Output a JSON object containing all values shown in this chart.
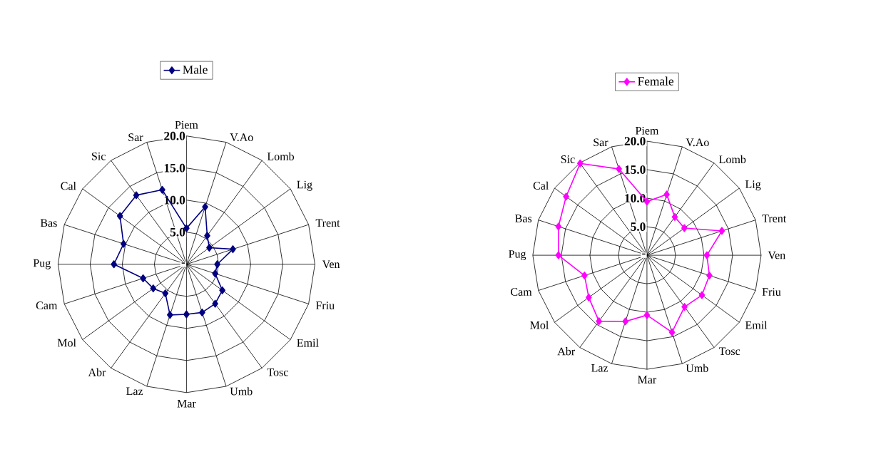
{
  "chart_data": [
    {
      "type": "radar",
      "categories": [
        "Piem",
        "V.Ao",
        "Lomb",
        "Lig",
        "Trent",
        "Ven",
        "Friu",
        "Emil",
        "Tosc",
        "Umb",
        "Mar",
        "Laz",
        "Abr",
        "Mol",
        "Cam",
        "Pug",
        "Bas",
        "Cal",
        "Sic",
        "Sar"
      ],
      "series": [
        {
          "name": "Male",
          "color": "#000080",
          "values": [
            5.6,
            9.4,
            5.5,
            4.4,
            7.6,
            4.8,
            4.7,
            6.9,
            7.6,
            7.9,
            7.8,
            8.3,
            5.6,
            6.4,
            7.1,
            11.3,
            10.3,
            12.8,
            13.3,
            12.2
          ]
        }
      ],
      "ylim": [
        0,
        20
      ],
      "yticks": [
        {
          "value": 0,
          "label": "-"
        },
        {
          "value": 5,
          "label": "5.0"
        },
        {
          "value": 10,
          "label": "10.0"
        },
        {
          "value": 15,
          "label": "15.0"
        },
        {
          "value": 20,
          "label": "20.0"
        }
      ],
      "grid": true,
      "legend": "top",
      "marker": "diamond"
    },
    {
      "type": "radar",
      "categories": [
        "Piem",
        "V.Ao",
        "Lomb",
        "Lig",
        "Trent",
        "Ven",
        "Friu",
        "Emil",
        "Tosc",
        "Umb",
        "Mar",
        "Laz",
        "Abr",
        "Mol",
        "Cam",
        "Pug",
        "Bas",
        "Cal",
        "Sic",
        "Sar"
      ],
      "series": [
        {
          "name": "Female",
          "color": "#ff00ff",
          "values": [
            9.4,
            11.2,
            8.3,
            8.1,
            13.8,
            10.5,
            11.5,
            11.9,
            11.2,
            14.2,
            10.5,
            12.2,
            14.3,
            12.6,
            11.5,
            15.5,
            16.3,
            17.5,
            19.9,
            15.9
          ]
        }
      ],
      "ylim": [
        0,
        20
      ],
      "yticks": [
        {
          "value": 0,
          "label": "-"
        },
        {
          "value": 5,
          "label": "5.0"
        },
        {
          "value": 10,
          "label": "10.0"
        },
        {
          "value": 15,
          "label": "15.0"
        },
        {
          "value": 20,
          "label": "20.0"
        }
      ],
      "grid": true,
      "legend": "top",
      "marker": "diamond"
    }
  ]
}
